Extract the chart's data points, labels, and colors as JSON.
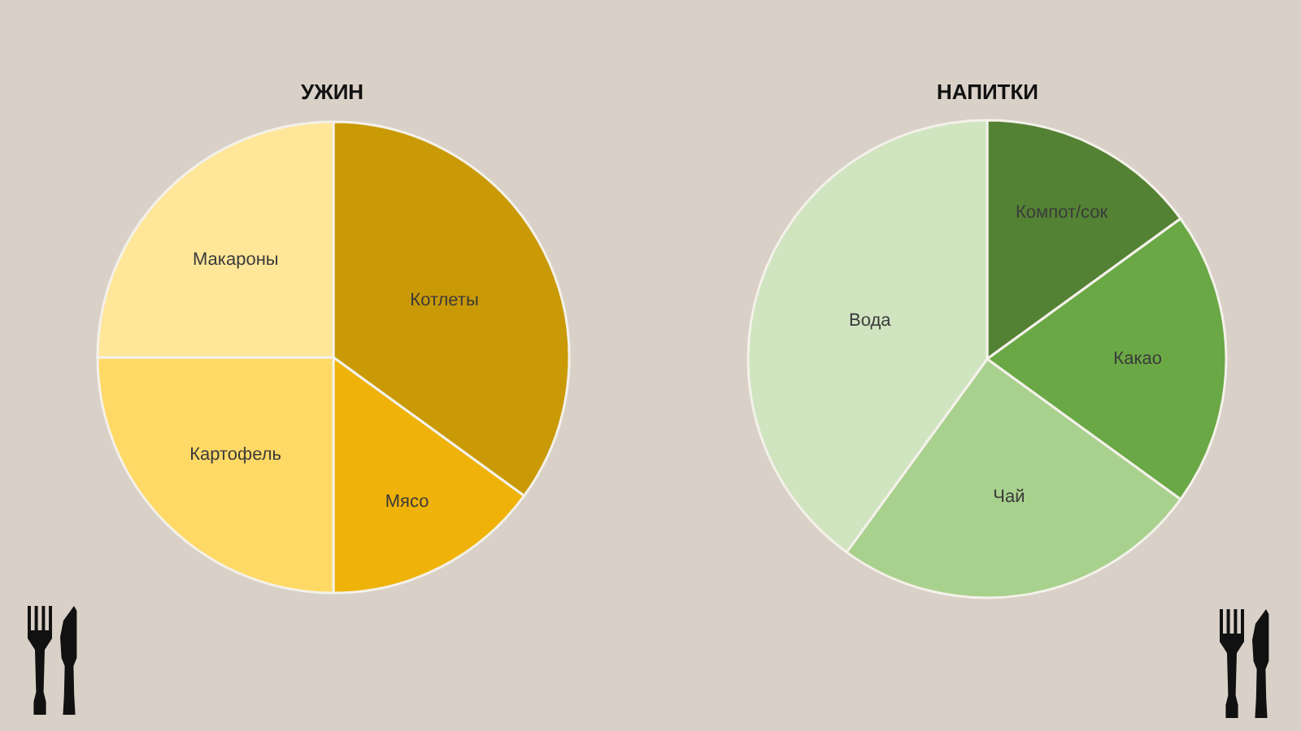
{
  "chart_data": [
    {
      "type": "pie",
      "title": "УЖИН",
      "categories": [
        "Котлеты",
        "Мясо",
        "Картофель",
        "Макароны"
      ],
      "values": [
        35,
        15,
        25,
        25
      ],
      "colors": [
        "#c99a06",
        "#efb208",
        "#ffd966",
        "#ffe699"
      ]
    },
    {
      "type": "pie",
      "title": "НАПИТКИ",
      "categories": [
        "Компот/сок",
        "Какао",
        "Чай",
        "Вода"
      ],
      "values": [
        15,
        20,
        25,
        40
      ],
      "colors": [
        "#548235",
        "#6aa845",
        "#a9d18e",
        "#d0e4c0"
      ]
    }
  ]
}
